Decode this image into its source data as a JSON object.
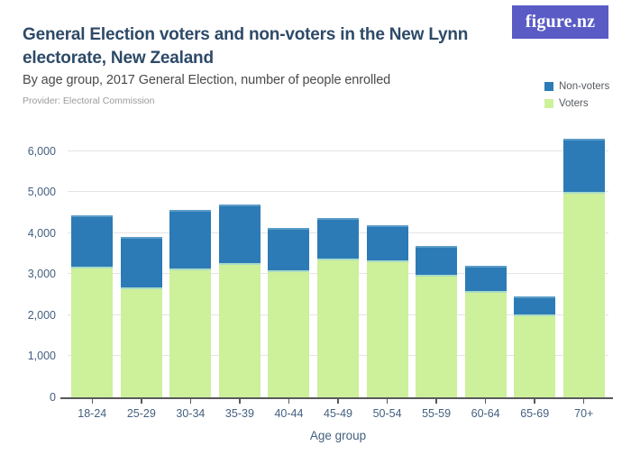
{
  "header": {
    "title": "General Election voters and non-voters in the New Lynn electorate, New Zealand",
    "subtitle": "By age group, 2017 General Election, number of people enrolled",
    "provider": "Provider: Electoral Commission",
    "logo_text": "figure.nz"
  },
  "legend": {
    "items": [
      {
        "label": "Non-voters",
        "color": "#2c7bb6"
      },
      {
        "label": "Voters",
        "color": "#cdf09b"
      }
    ]
  },
  "chart_data": {
    "type": "bar",
    "stacked": true,
    "title": "General Election voters and non-voters in the New Lynn electorate, New Zealand",
    "subtitle": "By age group, 2017 General Election, number of people enrolled",
    "categories": [
      "18-24",
      "25-29",
      "30-34",
      "35-39",
      "40-44",
      "45-49",
      "50-54",
      "55-59",
      "60-64",
      "65-69",
      "70+"
    ],
    "series": [
      {
        "name": "Voters",
        "color": "#cdf09b",
        "values": [
          3190,
          2690,
          3150,
          3280,
          3090,
          3390,
          3330,
          2980,
          2590,
          2020,
          5010
        ]
      },
      {
        "name": "Non-voters",
        "color": "#2c7bb6",
        "values": [
          1250,
          1210,
          1410,
          1430,
          1040,
          980,
          870,
          720,
          610,
          450,
          1290
        ]
      }
    ],
    "stack_totals": [
      4440,
      3900,
      4560,
      4710,
      4130,
      4370,
      4200,
      3700,
      3200,
      2470,
      6300
    ],
    "xlabel": "Age group",
    "ylabel": "",
    "ylim": [
      0,
      6500
    ],
    "yticks": [
      0,
      1000,
      2000,
      3000,
      4000,
      5000,
      6000
    ],
    "ytick_labels": [
      "0",
      "1,000",
      "2,000",
      "3,000",
      "4,000",
      "5,000",
      "6,000"
    ],
    "grid": true,
    "legend_position": "top-right"
  },
  "colors": {
    "title": "#2d4a68",
    "subtitle": "#4a4a4a",
    "provider": "#9b9b9b",
    "axis_text": "#44607f",
    "gridline": "#e4e4e4",
    "axis_line": "#58595b",
    "nonvoters_blue": "#2c7bb6",
    "voters_green": "#cdf09b",
    "logo_bg": "#5a5bc5"
  }
}
